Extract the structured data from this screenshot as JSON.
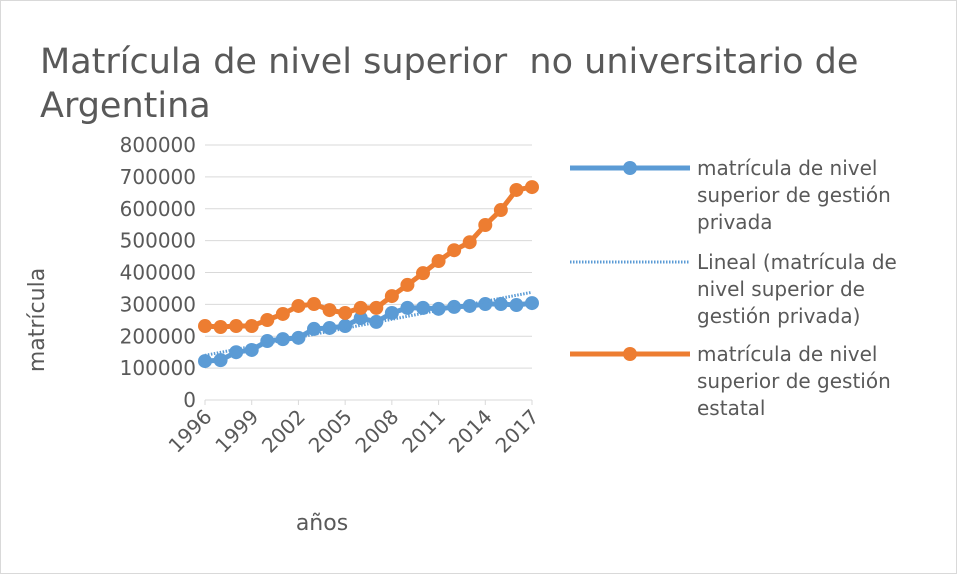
{
  "chart_data": {
    "type": "line",
    "title": "Matrícula de nivel superior  no universitario de Argentina",
    "x_label": "años",
    "y_label": "matrícula",
    "x": [
      1996,
      1997,
      1998,
      1999,
      2000,
      2001,
      2002,
      2003,
      2004,
      2005,
      2006,
      2007,
      2008,
      2009,
      2010,
      2011,
      2012,
      2013,
      2014,
      2015,
      2016,
      2017
    ],
    "xlim": [
      1996,
      2017
    ],
    "xticks": [
      1996,
      1999,
      2002,
      2005,
      2008,
      2011,
      2014,
      2017
    ],
    "ylim": [
      0,
      800000
    ],
    "yticks": [
      0,
      100000,
      200000,
      300000,
      400000,
      500000,
      600000,
      700000,
      800000
    ],
    "grid": true,
    "legend": "right",
    "series": [
      {
        "name": "matrícula de nivel superior de gestión privada",
        "color": "#5b9bd5",
        "style": "solid",
        "markers": true,
        "values": [
          122000,
          125000,
          150000,
          157000,
          185000,
          191000,
          195000,
          223000,
          226000,
          232000,
          257000,
          245000,
          273000,
          289000,
          289000,
          286000,
          292000,
          295000,
          301000,
          301000,
          298000,
          304000
        ]
      },
      {
        "name": "Lineal (matrícula de nivel superior de gestión privada)",
        "color": "#5b9bd5",
        "style": "dotted",
        "markers": false,
        "values": [
          140000,
          149400,
          158900,
          168300,
          177700,
          187100,
          196600,
          206000,
          215400,
          224900,
          234300,
          243700,
          253100,
          262600,
          272000,
          281400,
          290900,
          300300,
          309700,
          319100,
          328600,
          338000
        ]
      },
      {
        "name": "matrícula de nivel superior de gestión estatal",
        "color": "#ed7d31",
        "style": "solid",
        "markers": true,
        "values": [
          232000,
          229000,
          232000,
          232000,
          251000,
          270000,
          295000,
          301000,
          282000,
          273000,
          289000,
          289000,
          326000,
          361000,
          398000,
          436000,
          470000,
          495000,
          549000,
          596000,
          659000,
          668000
        ]
      }
    ]
  }
}
